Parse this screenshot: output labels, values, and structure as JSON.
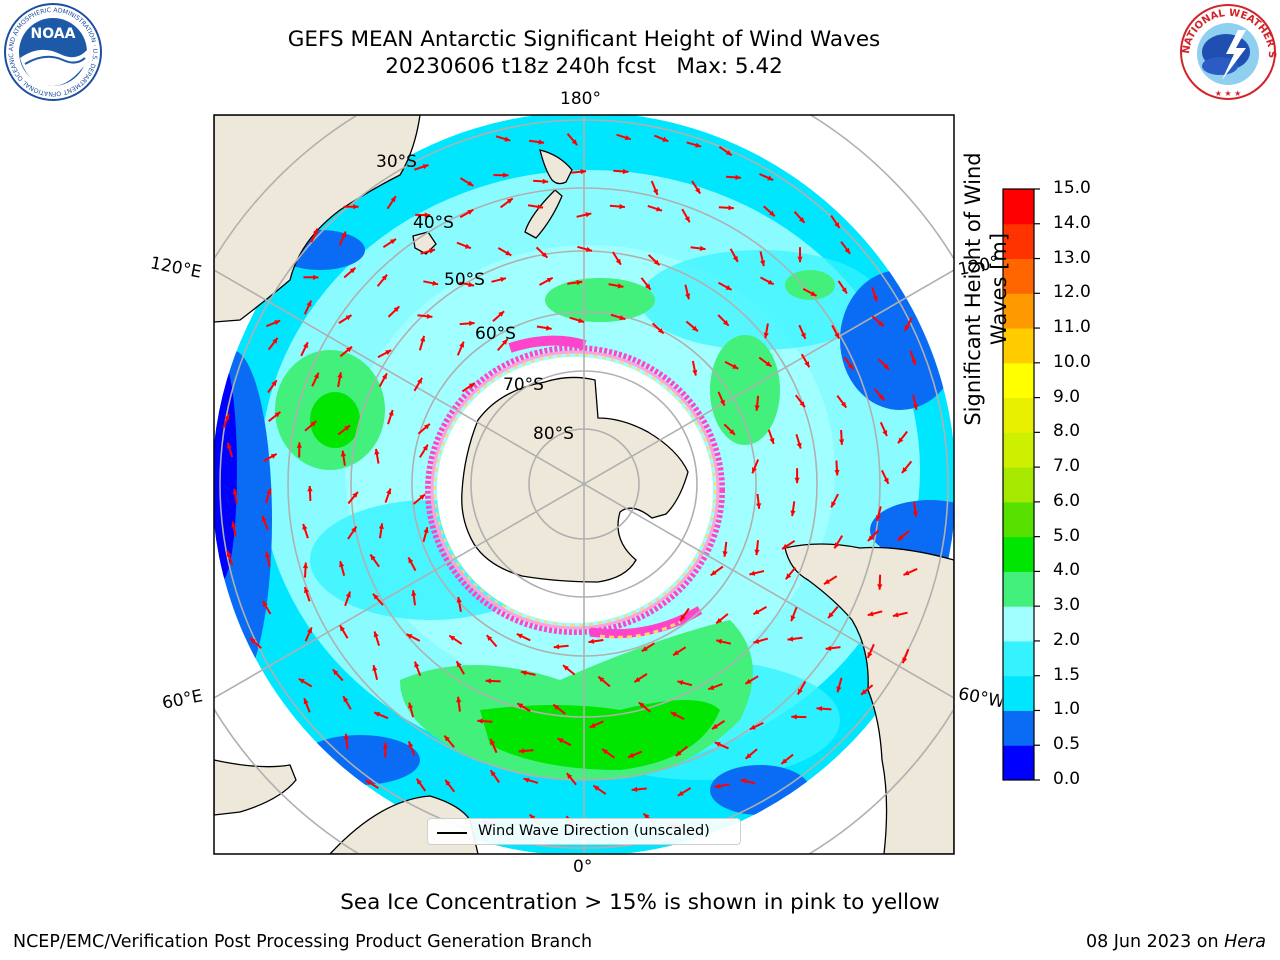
{
  "header": {
    "title": "GEFS MEAN Antarctic Significant Height of Wind Waves",
    "subtitle_date": "20230606 t18z 240h fcst",
    "subtitle_max": "Max: 5.42"
  },
  "map": {
    "projection": "south-polar stereographic",
    "meridian_labels": [
      "180°",
      "120°E",
      "120°",
      "60°E",
      "60°W",
      "0°"
    ],
    "parallel_labels": [
      "30°S",
      "40°S",
      "50°S",
      "60°S",
      "70°S",
      "80°S"
    ],
    "sea_ice_colors": [
      "#ff44cc",
      "#ffa3d8",
      "#ffd86a",
      "#f7f07a"
    ],
    "arrow_color": "#ff0000"
  },
  "legend": {
    "label": "Wind Wave Direction (unscaled)"
  },
  "colorbar": {
    "label": "Significant Height of Wind Waves [m]",
    "ticks": [
      "0.0",
      "0.5",
      "1.0",
      "1.5",
      "2.0",
      "3.0",
      "4.0",
      "5.0",
      "6.0",
      "7.0",
      "8.0",
      "9.0",
      "10.0",
      "11.0",
      "12.0",
      "13.0",
      "14.0",
      "15.0"
    ],
    "colors": [
      "#0000ff",
      "#0a6cf5",
      "#00e6ff",
      "#36f2ff",
      "#a2ffff",
      "#43f07c",
      "#00e600",
      "#58e000",
      "#a6e800",
      "#ccf000",
      "#e8f000",
      "#ffff00",
      "#ffcc00",
      "#ff9900",
      "#ff6600",
      "#ff3300",
      "#ff0000"
    ]
  },
  "footer": {
    "note": "Sea Ice Concentration > 15% is shown in pink to yellow",
    "credit": "NCEP/EMC/Verification Post Processing Product Generation Branch",
    "date_text": "08 Jun 2023 on ",
    "machine": "Hera"
  },
  "logos": {
    "noaa_text": "NOAA",
    "noaa_ring": "NATIONAL OCEANIC AND ATMOSPHERIC ADMINISTRATION · U.S. DEPARTMENT OF COMMERCE",
    "nws_ring": "NATIONAL WEATHER SERVICE"
  }
}
